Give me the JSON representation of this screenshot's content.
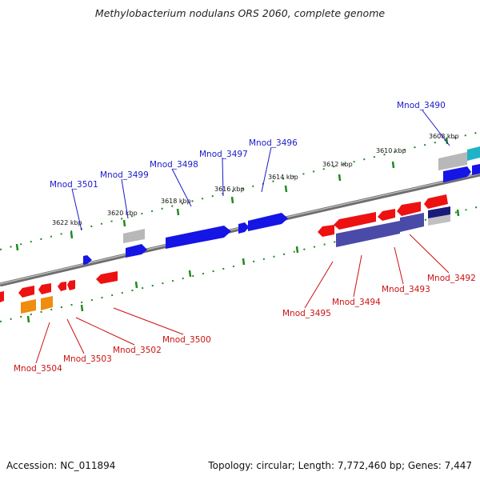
{
  "title": "Methylobacterium nodulans ORS 2060, complete genome",
  "footer": {
    "accession": "Accession: NC_011894",
    "summary": "Topology: circular; Length: 7,772,460 bp; Genes: 7,447"
  },
  "colors": {
    "forward_label": "#1a1ac8",
    "reverse_label": "#cc1111",
    "backbone": "#7a7a7a",
    "scale_ticks": "#1f8a1f"
  },
  "scale_labels": [
    "3608 kbp",
    "3610 kbp",
    "3612 kbp",
    "3614 kbp",
    "3616 kbp",
    "3618 kbp",
    "3620 kbp",
    "3622 kbp"
  ],
  "forward_genes": [
    "Mnod_3490",
    "Mnod_3496",
    "Mnod_3497",
    "Mnod_3498",
    "Mnod_3499",
    "Mnod_3501"
  ],
  "reverse_genes": [
    "Mnod_3492",
    "Mnod_3493",
    "Mnod_3494",
    "Mnod_3495",
    "Mnod_3500",
    "Mnod_3502",
    "Mnod_3503",
    "Mnod_3504"
  ]
}
